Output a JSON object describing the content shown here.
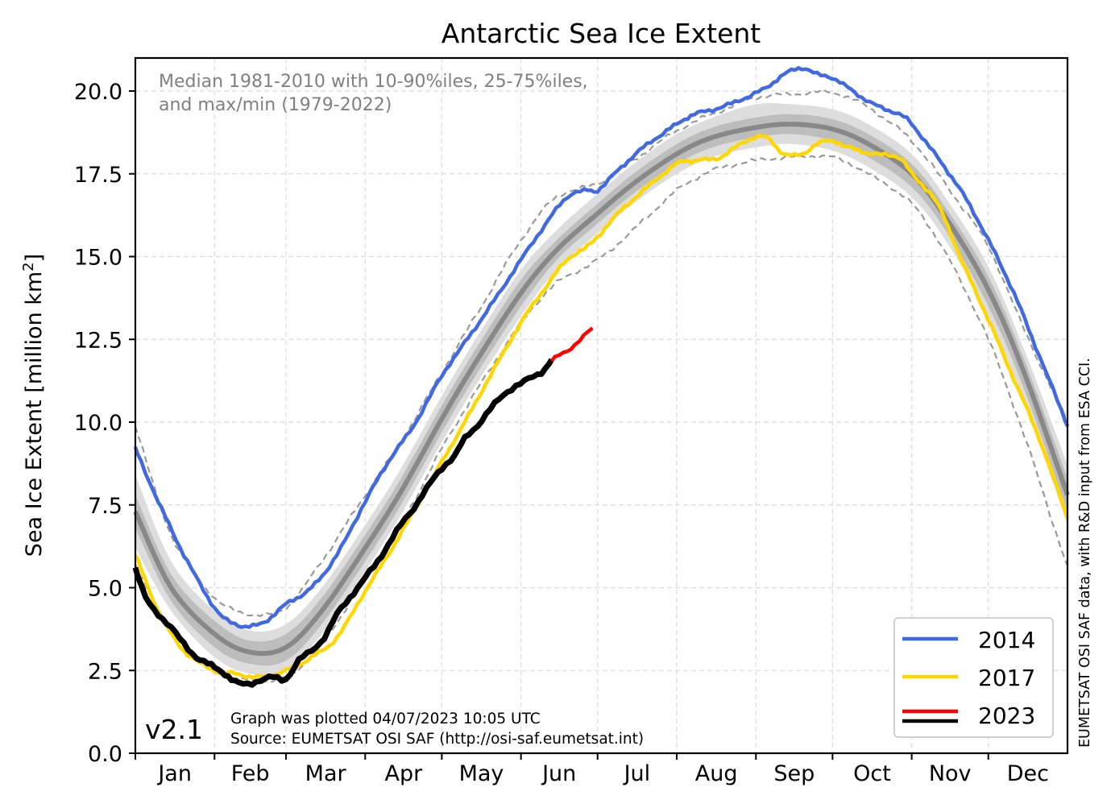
{
  "chart_data": {
    "type": "line",
    "title": "Antarctic Sea Ice Extent",
    "xlabel": "",
    "ylabel": "Sea Ice Extent [million km²]",
    "ylabel_main": "Sea Ice Extent [million km",
    "ylabel_sup": "2",
    "ylabel_end": "]",
    "ylim": [
      0,
      21
    ],
    "xlim_day": [
      1,
      366
    ],
    "yticks": [
      "0.0",
      "2.5",
      "5.0",
      "7.5",
      "10.0",
      "12.5",
      "15.0",
      "17.5",
      "20.0"
    ],
    "ytick_values": [
      0,
      2.5,
      5,
      7.5,
      10,
      12.5,
      15,
      17.5,
      20
    ],
    "months": [
      "Jan",
      "Feb",
      "Mar",
      "Apr",
      "May",
      "Jun",
      "Jul",
      "Aug",
      "Sep",
      "Oct",
      "Nov",
      "Dec"
    ],
    "month_start_days": [
      1,
      32,
      60,
      91,
      121,
      152,
      182,
      213,
      244,
      274,
      305,
      335
    ],
    "grid": true,
    "legend_position": "bottom-right",
    "annotation": [
      "Median 1981-2010 with 10-90%iles, 25-75%iles,",
      "and max/min (1979-2022)"
    ],
    "climatology": {
      "days": [
        1,
        15,
        32,
        46,
        60,
        74,
        91,
        105,
        121,
        135,
        152,
        166,
        182,
        196,
        213,
        227,
        244,
        258,
        274,
        288,
        305,
        319,
        335,
        349,
        366
      ],
      "median": [
        7.3,
        5.0,
        3.6,
        3.05,
        3.2,
        4.3,
        6.2,
        7.9,
        10.1,
        11.9,
        13.9,
        15.2,
        16.3,
        17.2,
        18.1,
        18.6,
        18.9,
        19.0,
        18.85,
        18.4,
        17.5,
        16.1,
        14.0,
        11.5,
        7.8
      ],
      "p25": [
        6.8,
        4.6,
        3.2,
        2.7,
        2.8,
        3.9,
        5.8,
        7.5,
        9.7,
        11.5,
        13.5,
        14.9,
        16.0,
        16.9,
        17.8,
        18.3,
        18.6,
        18.7,
        18.5,
        18.0,
        17.1,
        15.7,
        13.5,
        11.0,
        7.3
      ],
      "p75": [
        7.8,
        5.4,
        4.0,
        3.4,
        3.6,
        4.7,
        6.6,
        8.3,
        10.5,
        12.3,
        14.3,
        15.5,
        16.6,
        17.5,
        18.4,
        18.9,
        19.2,
        19.3,
        19.15,
        18.7,
        17.8,
        16.4,
        14.4,
        11.9,
        8.3
      ],
      "p10": [
        6.2,
        4.3,
        2.9,
        2.4,
        2.5,
        3.6,
        5.5,
        7.2,
        9.4,
        11.2,
        13.2,
        14.6,
        15.7,
        16.6,
        17.5,
        18.0,
        18.3,
        18.4,
        18.2,
        17.7,
        16.8,
        15.4,
        13.2,
        10.6,
        6.9
      ],
      "p90": [
        8.4,
        5.8,
        4.3,
        3.7,
        3.9,
        5.0,
        6.9,
        8.6,
        10.8,
        12.6,
        14.6,
        15.8,
        16.9,
        17.8,
        18.7,
        19.2,
        19.6,
        19.6,
        19.45,
        19.0,
        18.1,
        16.7,
        14.7,
        12.2,
        8.7
      ],
      "max": [
        9.9,
        6.6,
        4.7,
        4.2,
        4.4,
        5.8,
        7.8,
        9.4,
        11.5,
        13.3,
        15.5,
        16.8,
        17.2,
        17.9,
        18.8,
        19.3,
        19.8,
        19.9,
        19.95,
        19.5,
        18.5,
        17.1,
        15.3,
        12.8,
        10.0
      ],
      "min": [
        5.7,
        3.7,
        2.5,
        2.2,
        2.3,
        3.3,
        5.3,
        6.9,
        9.2,
        11.0,
        13.0,
        14.2,
        14.9,
        15.8,
        17.0,
        17.6,
        17.9,
        18.0,
        18.0,
        17.5,
        16.6,
        15.0,
        12.5,
        9.6,
        5.6
      ]
    },
    "series": [
      {
        "name": "2014",
        "color": "#4169e1",
        "days": [
          1,
          10,
          20,
          32,
          40,
          50,
          60,
          70,
          80,
          91,
          100,
          110,
          121,
          130,
          140,
          152,
          160,
          170,
          178,
          182,
          190,
          200,
          213,
          220,
          230,
          240,
          248,
          255,
          262,
          268,
          274,
          280,
          290,
          300,
          305,
          315,
          325,
          335,
          345,
          355,
          366
        ],
        "values": [
          9.2,
          7.6,
          6.0,
          4.4,
          3.9,
          3.9,
          4.5,
          5.0,
          6.0,
          7.6,
          8.8,
          9.9,
          11.4,
          12.4,
          13.5,
          14.9,
          15.8,
          16.8,
          17.0,
          17.0,
          17.6,
          18.3,
          19.0,
          19.3,
          19.5,
          19.8,
          20.1,
          20.5,
          20.7,
          20.5,
          20.4,
          20.1,
          19.6,
          19.3,
          19.0,
          18.0,
          16.9,
          15.5,
          13.9,
          12.0,
          9.9
        ]
      },
      {
        "name": "2017",
        "color": "#ffd700",
        "days": [
          1,
          10,
          20,
          32,
          40,
          50,
          60,
          70,
          80,
          91,
          100,
          110,
          121,
          130,
          140,
          152,
          160,
          170,
          178,
          182,
          190,
          200,
          213,
          220,
          230,
          240,
          248,
          255,
          262,
          268,
          274,
          280,
          290,
          300,
          305,
          315,
          325,
          335,
          345,
          355,
          366
        ],
        "values": [
          6.0,
          4.3,
          3.1,
          2.5,
          2.4,
          2.3,
          2.5,
          2.9,
          3.5,
          4.9,
          6.0,
          7.3,
          8.8,
          10.0,
          11.4,
          13.0,
          13.9,
          14.9,
          15.3,
          15.6,
          16.3,
          17.0,
          17.8,
          17.9,
          18.0,
          18.5,
          18.6,
          18.1,
          18.1,
          18.4,
          18.5,
          18.3,
          18.1,
          18.0,
          17.5,
          16.6,
          14.8,
          13.1,
          11.3,
          9.5,
          7.1
        ]
      },
      {
        "name": "2023",
        "color": "#000000",
        "days": [
          1,
          5,
          10,
          15,
          20,
          25,
          32,
          36,
          40,
          45,
          50,
          55,
          60,
          65,
          70,
          75,
          80,
          85,
          91,
          96,
          100,
          105,
          110,
          115,
          121,
          126,
          130,
          135,
          140,
          145,
          150,
          155,
          160,
          164
        ],
        "values": [
          5.6,
          4.7,
          4.2,
          3.8,
          3.3,
          2.9,
          2.6,
          2.4,
          2.15,
          2.1,
          2.2,
          2.3,
          2.25,
          2.8,
          3.1,
          3.5,
          4.2,
          4.7,
          5.3,
          5.8,
          6.3,
          6.9,
          7.4,
          8.0,
          8.6,
          9.0,
          9.5,
          9.9,
          10.4,
          10.8,
          11.1,
          11.3,
          11.5,
          11.9
        ]
      },
      {
        "name": "2023",
        "color": "#ff0000",
        "days": [
          164,
          167,
          170,
          173,
          175,
          178,
          180
        ],
        "values": [
          11.9,
          12.05,
          12.1,
          12.3,
          12.5,
          12.75,
          12.85
        ]
      }
    ],
    "legend": [
      {
        "label": "2014",
        "colors": [
          "#4169e1"
        ]
      },
      {
        "label": "2017",
        "colors": [
          "#ffd700"
        ]
      },
      {
        "label": "2023",
        "colors": [
          "#ff0000",
          "#000000"
        ]
      }
    ]
  },
  "footer": {
    "version": "v2.1",
    "plotted": "Graph was plotted 04/07/2023 10:05 UTC",
    "source": "Source: EUMETSAT OSI SAF (http://osi-saf.eumetsat.int)"
  },
  "side_note": "EUMETSAT OSI SAF data, with R&D input from ESA CCI."
}
